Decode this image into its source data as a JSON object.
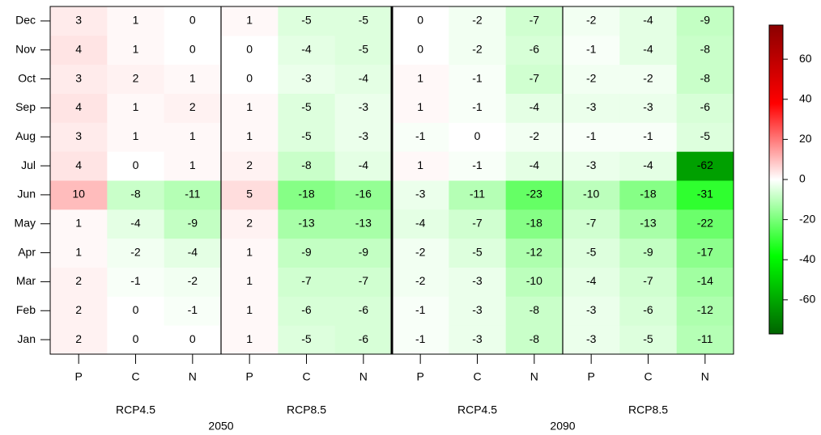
{
  "chart_data": {
    "type": "heatmap",
    "rows": [
      "Jan",
      "Feb",
      "Mar",
      "Apr",
      "May",
      "Jun",
      "Jul",
      "Aug",
      "Sep",
      "Oct",
      "Nov",
      "Dec"
    ],
    "columns": [
      "P",
      "C",
      "N",
      "P",
      "C",
      "N",
      "P",
      "C",
      "N",
      "P",
      "C",
      "N"
    ],
    "groups": [
      "RCP4.5",
      "RCP8.5",
      "RCP4.5",
      "RCP8.5"
    ],
    "periods": [
      "2050",
      "2090"
    ],
    "values": [
      [
        2,
        0,
        0,
        1,
        -5,
        -6,
        -1,
        -3,
        -8,
        -3,
        -5,
        -11
      ],
      [
        2,
        0,
        -1,
        1,
        -6,
        -6,
        -1,
        -3,
        -8,
        -3,
        -6,
        -12
      ],
      [
        2,
        -1,
        -2,
        1,
        -7,
        -7,
        -2,
        -3,
        -10,
        -4,
        -7,
        -14
      ],
      [
        1,
        -2,
        -4,
        1,
        -9,
        -9,
        -2,
        -5,
        -12,
        -5,
        -9,
        -17
      ],
      [
        1,
        -4,
        -9,
        2,
        -13,
        -13,
        -4,
        -7,
        -18,
        -7,
        -13,
        -22
      ],
      [
        10,
        -8,
        -11,
        5,
        -18,
        -16,
        -3,
        -11,
        -23,
        -10,
        -18,
        -31
      ],
      [
        4,
        0,
        1,
        2,
        -8,
        -4,
        1,
        -1,
        -4,
        -3,
        -4,
        -62
      ],
      [
        3,
        1,
        1,
        1,
        -5,
        -3,
        -1,
        0,
        -2,
        -1,
        -1,
        -5
      ],
      [
        4,
        1,
        2,
        1,
        -5,
        -3,
        1,
        -1,
        -4,
        -3,
        -3,
        -6
      ],
      [
        3,
        2,
        1,
        0,
        -3,
        -4,
        1,
        -1,
        -7,
        -2,
        -2,
        -8
      ],
      [
        4,
        1,
        0,
        0,
        -4,
        -5,
        0,
        -2,
        -6,
        -1,
        -4,
        -8
      ],
      [
        3,
        1,
        0,
        1,
        -5,
        -5,
        0,
        -2,
        -7,
        -2,
        -4,
        -9
      ]
    ],
    "clim": [
      -77,
      77
    ],
    "colorbar_ticks": [
      -60,
      -40,
      -20,
      0,
      20,
      40,
      60
    ],
    "colorscale": [
      {
        "value": -77,
        "color": "#006400"
      },
      {
        "value": -38,
        "color": "#00ff00"
      },
      {
        "value": 0,
        "color": "#ffffff"
      },
      {
        "value": 38,
        "color": "#ff0000"
      },
      {
        "value": 77,
        "color": "#8b0000"
      }
    ]
  }
}
